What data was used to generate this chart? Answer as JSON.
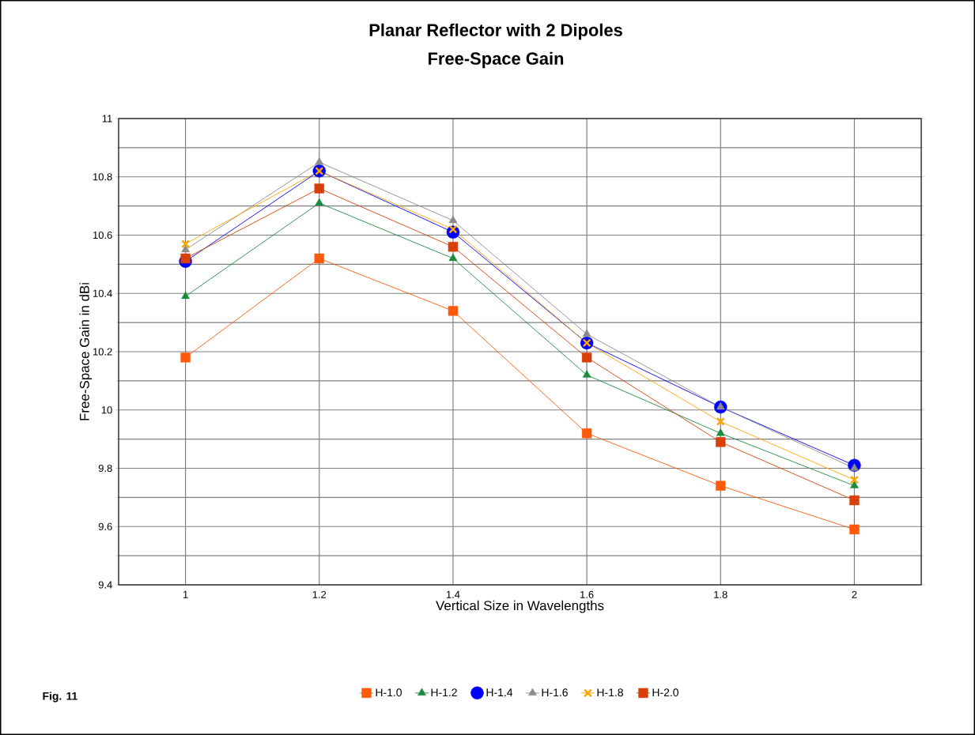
{
  "chart_data": {
    "type": "line",
    "title": "Planar Reflector with 2 Dipoles",
    "subtitle": "Free-Space Gain",
    "xlabel": "Vertical Size in Wavelengths",
    "ylabel": "Free-Space Gain in dBi",
    "categories": [
      "1",
      "1.2",
      "1.4",
      "1.6",
      "1.8",
      "2"
    ],
    "series": [
      {
        "name": "H-1.0",
        "color": "#ff5a0a",
        "marker": "square",
        "values": [
          10.18,
          10.52,
          10.34,
          9.92,
          9.74,
          9.59
        ]
      },
      {
        "name": "H-1.2",
        "color": "#1a8c3c",
        "marker": "triangle",
        "values": [
          10.39,
          10.71,
          10.52,
          10.12,
          9.92,
          9.74
        ]
      },
      {
        "name": "H-1.4",
        "color": "#0000ff",
        "marker": "circle",
        "values": [
          10.51,
          10.82,
          10.61,
          10.23,
          10.01,
          9.81
        ]
      },
      {
        "name": "H-1.6",
        "color": "#8c8c8c",
        "marker": "triangle",
        "values": [
          10.55,
          10.85,
          10.65,
          10.26,
          10.01,
          9.8
        ]
      },
      {
        "name": "H-1.8",
        "color": "#ffa500",
        "marker": "cross",
        "values": [
          10.57,
          10.82,
          10.62,
          10.23,
          9.96,
          9.76
        ]
      },
      {
        "name": "H-2.0",
        "color": "#d8400a",
        "marker": "square",
        "values": [
          10.52,
          10.76,
          10.56,
          10.18,
          9.89,
          9.69
        ]
      }
    ],
    "ylim": [
      9.4,
      11
    ],
    "yticks": [
      9.4,
      9.6,
      9.8,
      10,
      10.2,
      10.4,
      10.6,
      10.8,
      11
    ],
    "grid": true,
    "legend": "bottom",
    "line_style": "solid",
    "annotations": [
      "Fig. 11"
    ]
  }
}
